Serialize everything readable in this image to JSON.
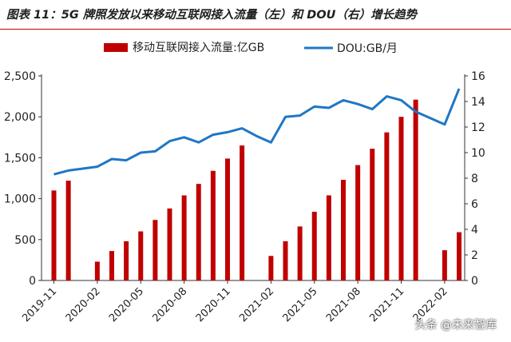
{
  "header": {
    "title": "图表 11：5G 牌照发放以来移动互联网接入流量（左）和 DOU（右）增长趋势"
  },
  "watermark": {
    "text": "头条 @未来智库"
  },
  "colors": {
    "bar": "#c00000",
    "line": "#1f77c4",
    "axis": "#333333",
    "title_rule": "#c00000"
  },
  "chart_data": {
    "type": "bar+line",
    "x": [
      "2019-11",
      "2019-12",
      "2020-01",
      "2020-02",
      "2020-03",
      "2020-04",
      "2020-05",
      "2020-06",
      "2020-07",
      "2020-08",
      "2020-09",
      "2020-10",
      "2020-11",
      "2020-12",
      "2021-01",
      "2021-02",
      "2021-03",
      "2021-04",
      "2021-05",
      "2021-06",
      "2021-07",
      "2021-08",
      "2021-09",
      "2021-10",
      "2021-11",
      "2021-12",
      "2022-01",
      "2022-02",
      "2022-03"
    ],
    "x_tick_labels": [
      "2019-11",
      "2020-02",
      "2020-05",
      "2020-08",
      "2020-11",
      "2021-02",
      "2021-05",
      "2021-08",
      "2021-11",
      "2022-02"
    ],
    "series": [
      {
        "name": "移动互联网接入流量:亿GB",
        "type": "bar",
        "axis": "left",
        "values": [
          1100,
          1220,
          null,
          230,
          360,
          480,
          600,
          740,
          880,
          1040,
          1180,
          1340,
          1490,
          1650,
          null,
          300,
          480,
          660,
          840,
          1040,
          1230,
          1410,
          1610,
          1810,
          2000,
          2210,
          null,
          370,
          590
        ]
      },
      {
        "name": "DOU:GB/月",
        "type": "line",
        "axis": "right",
        "values": [
          8.3,
          8.6,
          8.75,
          8.9,
          9.5,
          9.4,
          10.0,
          10.1,
          10.9,
          11.2,
          10.8,
          11.4,
          11.6,
          11.9,
          11.3,
          10.8,
          12.8,
          12.9,
          13.6,
          13.5,
          14.1,
          13.8,
          13.4,
          14.4,
          14.1,
          13.2,
          12.7,
          12.2,
          15.0
        ]
      }
    ],
    "left_axis": {
      "ylim": [
        0,
        2500
      ],
      "ticks": [
        "0",
        "500",
        "1,000",
        "1,500",
        "2,000",
        "2,500"
      ],
      "tick_values": [
        0,
        500,
        1000,
        1500,
        2000,
        2500
      ]
    },
    "right_axis": {
      "ylim": [
        0,
        16
      ],
      "ticks": [
        "0",
        "2",
        "4",
        "6",
        "8",
        "10",
        "12",
        "14",
        "16"
      ],
      "tick_values": [
        0,
        2,
        4,
        6,
        8,
        10,
        12,
        14,
        16
      ]
    },
    "legend": {
      "placement": "top",
      "entries": [
        "移动互联网接入流量:亿GB",
        "DOU:GB/月"
      ]
    },
    "grid": false
  }
}
